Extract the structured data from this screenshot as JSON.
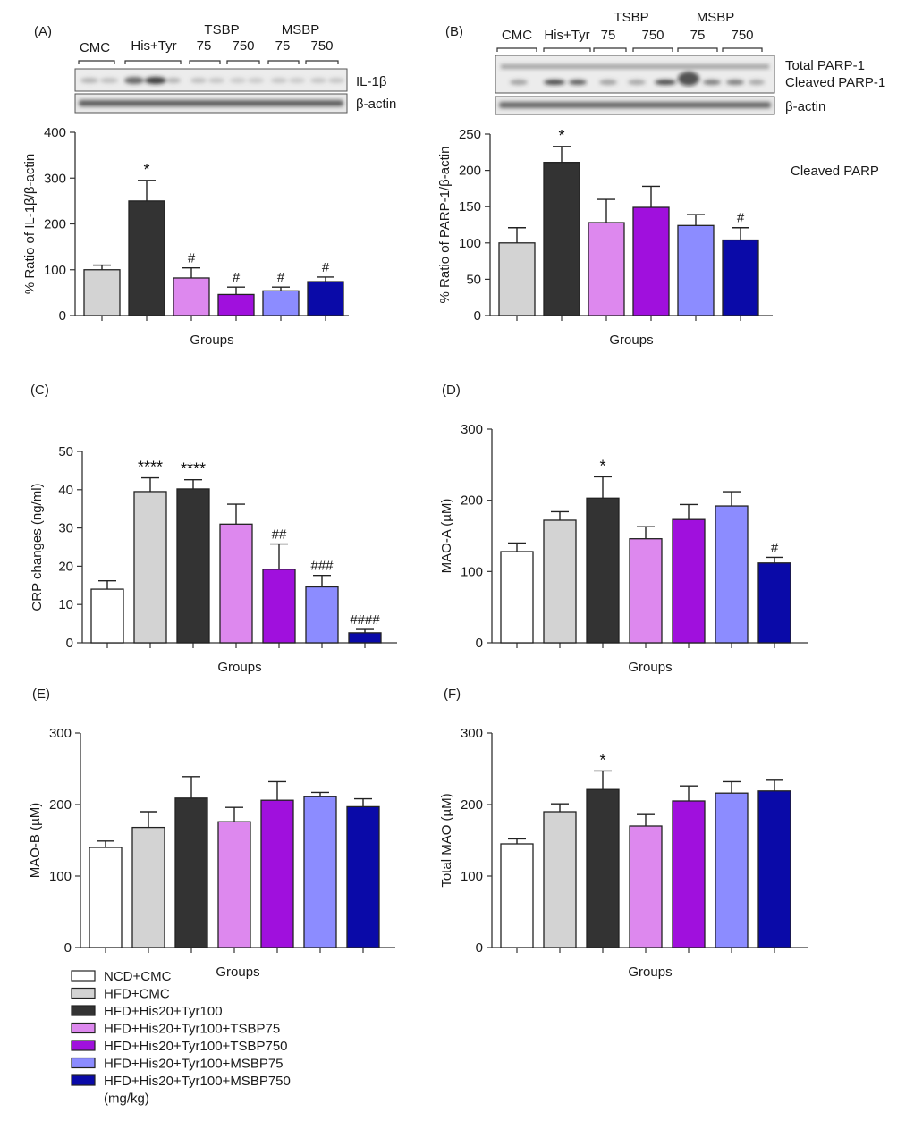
{
  "colors": {
    "NCD+CMC": "#ffffff",
    "HFD+CMC": "#d3d3d3",
    "HFD+His20+Tyr100": "#333333",
    "HFD+His20+Tyr100+TSBP75": "#dd88ee",
    "HFD+His20+Tyr100+TSBP750": "#a010dd",
    "HFD+His20+Tyr100+MSBP75": "#8c8cff",
    "HFD+His20+Tyr100+MSBP750": "#0a0aa8"
  },
  "blots": {
    "A": {
      "panel_label": "(A)",
      "lane_labels": [
        "CMC",
        "His+Tyr",
        "75",
        "750",
        "75",
        "750"
      ],
      "group_labels": [
        "TSBP",
        "MSBP"
      ],
      "band_labels": [
        "IL-1β",
        "β-actin"
      ]
    },
    "B": {
      "panel_label": "(B)",
      "lane_labels": [
        "CMC",
        "His+Tyr",
        "75",
        "750",
        "75",
        "750"
      ],
      "group_labels": [
        "TSBP",
        "MSBP"
      ],
      "band_labels": [
        "Total PARP-1",
        "Cleaved PARP-1",
        "β-actin"
      ]
    }
  },
  "chart_data": [
    {
      "id": "A",
      "type": "bar",
      "panel_label": "",
      "ylabel": "% Ratio of IL-1β/β-actin",
      "xlabel": "Groups",
      "ylim": [
        0,
        400
      ],
      "yticks": [
        0,
        100,
        200,
        300,
        400
      ],
      "categories": [
        "HFD+CMC",
        "HFD+His20+Tyr100",
        "HFD+His20+Tyr100+TSBP75",
        "HFD+His20+Tyr100+TSBP750",
        "HFD+His20+Tyr100+MSBP75",
        "HFD+His20+Tyr100+MSBP750"
      ],
      "values": [
        100,
        250,
        82,
        46,
        54,
        74
      ],
      "errors": [
        10,
        45,
        22,
        16,
        8,
        10
      ],
      "annotations": [
        "",
        "*",
        "#",
        "#",
        "#",
        "#"
      ],
      "note": ""
    },
    {
      "id": "B",
      "type": "bar",
      "panel_label": "",
      "ylabel": "% Ratio of PARP-1/β-actin",
      "xlabel": "Groups",
      "ylim": [
        0,
        250
      ],
      "yticks": [
        0,
        50,
        100,
        150,
        200,
        250
      ],
      "categories": [
        "HFD+CMC",
        "HFD+His20+Tyr100",
        "HFD+His20+Tyr100+TSBP75",
        "HFD+His20+Tyr100+TSBP750",
        "HFD+His20+Tyr100+MSBP75",
        "HFD+His20+Tyr100+MSBP750"
      ],
      "values": [
        100,
        211,
        128,
        149,
        124,
        104
      ],
      "errors": [
        21,
        22,
        32,
        29,
        15,
        17
      ],
      "annotations": [
        "",
        "*",
        "",
        "",
        "",
        "#"
      ],
      "note": "Cleaved PARP"
    },
    {
      "id": "C",
      "type": "bar",
      "panel_label": "(C)",
      "ylabel": "CRP changes (ng/ml)",
      "xlabel": "Groups",
      "ylim": [
        0,
        50
      ],
      "yticks": [
        0,
        10,
        20,
        30,
        40,
        50
      ],
      "categories": [
        "NCD+CMC",
        "HFD+CMC",
        "HFD+His20+Tyr100",
        "HFD+His20+Tyr100+TSBP75",
        "HFD+His20+Tyr100+TSBP750",
        "HFD+His20+Tyr100+MSBP75",
        "HFD+His20+Tyr100+MSBP750"
      ],
      "values": [
        14,
        39.5,
        40.2,
        31,
        19.2,
        14.6,
        2.6
      ],
      "errors": [
        2.2,
        3.6,
        2.4,
        5.2,
        6.6,
        3.0,
        0.9
      ],
      "annotations": [
        "",
        "****",
        "****",
        "",
        "##",
        "###",
        "####"
      ],
      "note": ""
    },
    {
      "id": "D",
      "type": "bar",
      "panel_label": "(D)",
      "ylabel": "MAO-A (µM)",
      "xlabel": "Groups",
      "ylim": [
        0,
        300
      ],
      "yticks": [
        0,
        100,
        200,
        300
      ],
      "categories": [
        "NCD+CMC",
        "HFD+CMC",
        "HFD+His20+Tyr100",
        "HFD+His20+Tyr100+TSBP75",
        "HFD+His20+Tyr100+TSBP750",
        "HFD+His20+Tyr100+MSBP75",
        "HFD+His20+Tyr100+MSBP750"
      ],
      "values": [
        128,
        172,
        203,
        146,
        173,
        192,
        112
      ],
      "errors": [
        12,
        12,
        30,
        17,
        21,
        20,
        8
      ],
      "annotations": [
        "",
        "",
        "*",
        "",
        "",
        "",
        "#"
      ],
      "note": ""
    },
    {
      "id": "E",
      "type": "bar",
      "panel_label": "(E)",
      "ylabel": "MAO-B (µM)",
      "xlabel": "Groups",
      "ylim": [
        0,
        300
      ],
      "yticks": [
        0,
        100,
        200,
        300
      ],
      "categories": [
        "NCD+CMC",
        "HFD+CMC",
        "HFD+His20+Tyr100",
        "HFD+His20+Tyr100+TSBP75",
        "HFD+His20+Tyr100+TSBP750",
        "HFD+His20+Tyr100+MSBP75",
        "HFD+His20+Tyr100+MSBP750"
      ],
      "values": [
        140,
        168,
        209,
        176,
        206,
        211,
        197
      ],
      "errors": [
        9,
        22,
        30,
        20,
        26,
        6,
        11
      ],
      "annotations": [
        "",
        "",
        "",
        "",
        "",
        "",
        ""
      ],
      "note": ""
    },
    {
      "id": "F",
      "type": "bar",
      "panel_label": "(F)",
      "ylabel": "Total MAO (µM)",
      "xlabel": "Groups",
      "ylim": [
        0,
        300
      ],
      "yticks": [
        0,
        100,
        200,
        300
      ],
      "categories": [
        "NCD+CMC",
        "HFD+CMC",
        "HFD+His20+Tyr100",
        "HFD+His20+Tyr100+TSBP75",
        "HFD+His20+Tyr100+TSBP750",
        "HFD+His20+Tyr100+MSBP75",
        "HFD+His20+Tyr100+MSBP750"
      ],
      "values": [
        145,
        190,
        221,
        170,
        205,
        216,
        219
      ],
      "errors": [
        7,
        11,
        26,
        16,
        21,
        16,
        15
      ],
      "annotations": [
        "",
        "",
        "*",
        "",
        "",
        "",
        ""
      ],
      "note": ""
    }
  ],
  "legend": {
    "items": [
      "NCD+CMC",
      "HFD+CMC",
      "HFD+His20+Tyr100",
      "HFD+His20+Tyr100+TSBP75",
      "HFD+His20+Tyr100+TSBP750",
      "HFD+His20+Tyr100+MSBP75",
      "HFD+His20+Tyr100+MSBP750"
    ],
    "unit": "(mg/kg)"
  }
}
